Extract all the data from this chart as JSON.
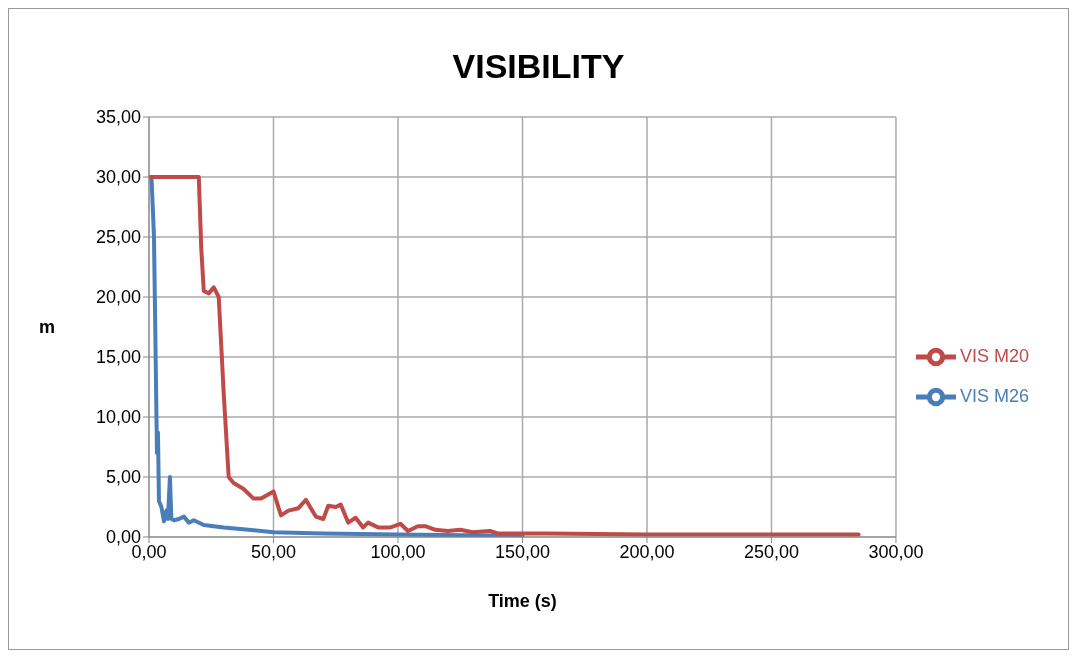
{
  "chart_data": {
    "type": "line",
    "title": "VISIBILITY",
    "xlabel": "Time (s)",
    "ylabel": "m",
    "xlim": [
      0,
      300
    ],
    "ylim": [
      0,
      35
    ],
    "xticks": [
      {
        "value": 0,
        "label": "0,00"
      },
      {
        "value": 50,
        "label": "50,00"
      },
      {
        "value": 100,
        "label": "100,00"
      },
      {
        "value": 150,
        "label": "150,00"
      },
      {
        "value": 200,
        "label": "200,00"
      },
      {
        "value": 250,
        "label": "250,00"
      },
      {
        "value": 300,
        "label": "300,00"
      }
    ],
    "yticks": [
      {
        "value": 0,
        "label": "0,00"
      },
      {
        "value": 5,
        "label": "5,00"
      },
      {
        "value": 10,
        "label": "10,00"
      },
      {
        "value": 15,
        "label": "15,00"
      },
      {
        "value": 20,
        "label": "20,00"
      },
      {
        "value": 25,
        "label": "25,00"
      },
      {
        "value": 30,
        "label": "30,00"
      },
      {
        "value": 35,
        "label": "35,00"
      }
    ],
    "grid": true,
    "legend": "right",
    "marker": "none",
    "line_style": "solid",
    "series": [
      {
        "name": "VIS M26",
        "color": "#4a7ebb",
        "x": [
          1,
          2,
          3.2,
          3.6,
          4,
          5,
          6,
          7,
          7.6,
          8.4,
          9,
          10,
          12,
          14,
          16,
          18,
          22,
          30,
          40,
          50,
          70,
          100,
          150
        ],
        "values": [
          30,
          25,
          7,
          8.7,
          3,
          2.5,
          1.3,
          2.2,
          1.5,
          5,
          1.5,
          1.4,
          1.5,
          1.7,
          1.2,
          1.4,
          1,
          0.8,
          0.6,
          0.4,
          0.3,
          0.2,
          0.1
        ]
      },
      {
        "name": "VIS M20",
        "color": "#be4b48",
        "x": [
          0,
          10,
          20,
          21,
          22,
          24,
          26,
          28,
          30,
          32,
          34,
          38,
          42,
          45,
          50,
          53,
          56,
          60,
          63,
          67,
          70,
          72,
          75,
          77,
          80,
          83,
          86,
          88,
          92,
          97,
          101,
          104,
          108,
          111,
          115,
          120,
          125,
          130,
          137,
          140,
          160,
          200,
          250,
          285
        ],
        "values": [
          30,
          30,
          30,
          24,
          20.5,
          20.3,
          20.8,
          20,
          12,
          5,
          4.5,
          4,
          3.2,
          3.2,
          3.8,
          1.8,
          2.2,
          2.4,
          3.1,
          1.7,
          1.5,
          2.6,
          2.5,
          2.7,
          1.2,
          1.6,
          0.8,
          1.2,
          0.8,
          0.8,
          1.1,
          0.5,
          0.9,
          0.9,
          0.6,
          0.5,
          0.6,
          0.4,
          0.5,
          0.3,
          0.3,
          0.2,
          0.2,
          0.2
        ]
      }
    ]
  }
}
